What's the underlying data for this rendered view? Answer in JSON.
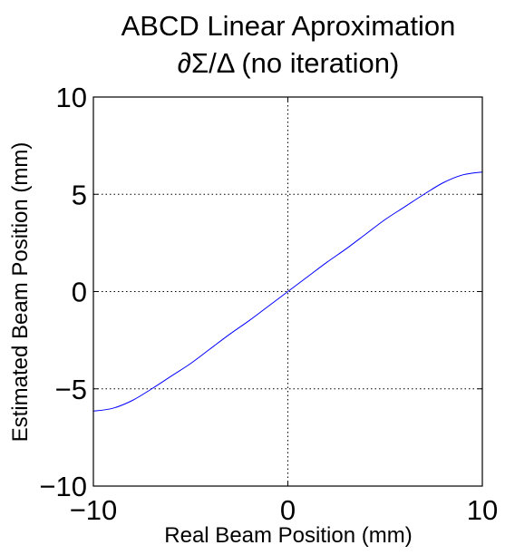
{
  "chart_data": {
    "type": "line",
    "title": "ABCD Linear Aproximation",
    "subtitle": "∂Σ/Δ (no iteration)",
    "xlabel": "Real Beam Position (mm)",
    "ylabel": "Estimated Beam Position (mm)",
    "xlim": [
      -10,
      10
    ],
    "ylim": [
      -10,
      10
    ],
    "xticks": [
      -10,
      0,
      10
    ],
    "yticks": [
      -10,
      -5,
      0,
      5,
      10
    ],
    "xtick_labels": [
      "−10",
      "0",
      "10"
    ],
    "ytick_labels": [
      "−10",
      "−5",
      "0",
      "5",
      "10"
    ],
    "grid": true,
    "series": [
      {
        "color": "#0000ff",
        "x": [
          -10,
          -9,
          -8,
          -7,
          -6,
          -5,
          -4,
          -3,
          -2,
          -1,
          0,
          1,
          2,
          3,
          4,
          5,
          6,
          7,
          8,
          9,
          10
        ],
        "y": [
          -6.15,
          -6.0,
          -5.6,
          -5.0,
          -4.35,
          -3.7,
          -2.95,
          -2.2,
          -1.5,
          -0.75,
          0,
          0.75,
          1.5,
          2.2,
          2.95,
          3.7,
          4.35,
          5.0,
          5.6,
          6.0,
          6.15
        ]
      }
    ]
  }
}
